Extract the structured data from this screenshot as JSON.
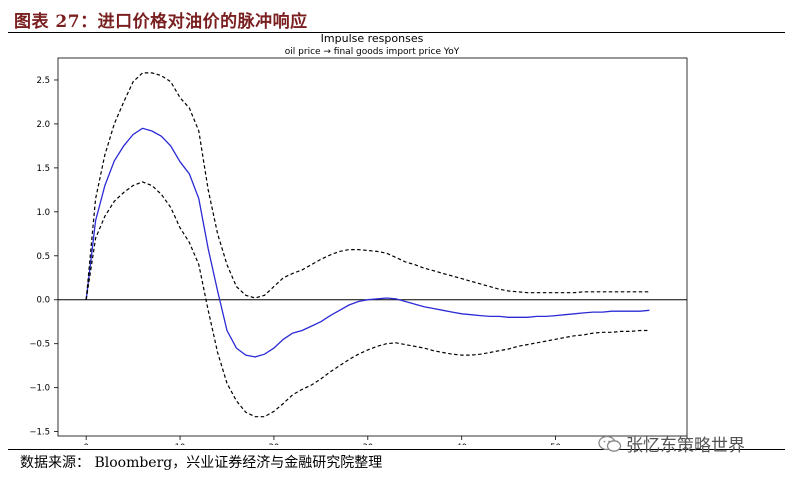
{
  "figure_title": "图表 27：进口价格对油价的脉冲响应",
  "source_note": "数据来源：  Bloomberg，兴业证券经济与金融研究院整理",
  "watermark": "张忆东策略世界",
  "chart_data": {
    "type": "line",
    "title": "Impulse responses",
    "subtitle": "oil price → final goods import price YoY",
    "xlabel": "",
    "ylabel": "",
    "xlim": [
      -3,
      64
    ],
    "ylim": [
      -1.55,
      2.75
    ],
    "x_ticks": [
      0,
      10,
      20,
      30,
      40,
      50
    ],
    "y_ticks": [
      -1.5,
      -1.0,
      -0.5,
      0.0,
      0.5,
      1.0,
      1.5,
      2.0,
      2.5
    ],
    "x_tick_labels": [
      "0",
      "10",
      "20",
      "30",
      "40",
      "50"
    ],
    "y_tick_labels": [
      "−1.5",
      "−1.0",
      "−0.5",
      "0.0",
      "0.5",
      "1.0",
      "1.5",
      "2.0",
      "2.5"
    ],
    "reference_line": 0,
    "colors": {
      "response": "#2b2bd6",
      "bands": "#000000",
      "zero": "#000000"
    },
    "series": [
      {
        "role": "response",
        "style": "solid",
        "x": [
          0,
          1,
          2,
          3,
          4,
          5,
          6,
          7,
          8,
          9,
          10,
          11,
          12,
          13,
          14,
          15,
          16,
          17,
          18,
          19,
          20,
          21,
          22,
          23,
          24,
          25,
          26,
          27,
          28,
          29,
          30,
          31,
          32,
          33,
          34,
          35,
          36,
          37,
          38,
          39,
          40,
          41,
          42,
          43,
          44,
          45,
          46,
          47,
          48,
          49,
          50,
          51,
          52,
          53,
          54,
          55,
          56,
          57,
          58,
          59,
          60
        ],
        "y": [
          0.0,
          0.9,
          1.3,
          1.58,
          1.75,
          1.88,
          1.95,
          1.92,
          1.86,
          1.75,
          1.57,
          1.43,
          1.15,
          0.58,
          0.1,
          -0.35,
          -0.55,
          -0.63,
          -0.65,
          -0.62,
          -0.55,
          -0.45,
          -0.38,
          -0.35,
          -0.3,
          -0.25,
          -0.18,
          -0.12,
          -0.06,
          -0.02,
          0.0,
          0.01,
          0.02,
          0.01,
          -0.02,
          -0.05,
          -0.08,
          -0.1,
          -0.12,
          -0.14,
          -0.16,
          -0.17,
          -0.18,
          -0.19,
          -0.19,
          -0.2,
          -0.2,
          -0.2,
          -0.19,
          -0.19,
          -0.18,
          -0.17,
          -0.16,
          -0.15,
          -0.14,
          -0.14,
          -0.13,
          -0.13,
          -0.13,
          -0.13,
          -0.12
        ]
      },
      {
        "role": "upper-band",
        "style": "dashed",
        "x": [
          0,
          1,
          2,
          3,
          4,
          5,
          6,
          7,
          8,
          9,
          10,
          11,
          12,
          13,
          14,
          15,
          16,
          17,
          18,
          19,
          20,
          21,
          22,
          23,
          24,
          25,
          26,
          27,
          28,
          29,
          30,
          31,
          32,
          33,
          34,
          35,
          36,
          37,
          38,
          39,
          40,
          41,
          42,
          43,
          44,
          45,
          46,
          47,
          48,
          49,
          50,
          51,
          52,
          53,
          54,
          55,
          56,
          57,
          58,
          59,
          60
        ],
        "y": [
          0.0,
          1.15,
          1.65,
          2.0,
          2.25,
          2.48,
          2.58,
          2.58,
          2.55,
          2.48,
          2.3,
          2.18,
          1.92,
          1.25,
          0.75,
          0.4,
          0.15,
          0.05,
          0.02,
          0.05,
          0.15,
          0.25,
          0.3,
          0.34,
          0.4,
          0.46,
          0.51,
          0.55,
          0.57,
          0.57,
          0.56,
          0.55,
          0.53,
          0.48,
          0.43,
          0.4,
          0.36,
          0.33,
          0.3,
          0.27,
          0.24,
          0.21,
          0.18,
          0.15,
          0.12,
          0.1,
          0.09,
          0.08,
          0.08,
          0.08,
          0.08,
          0.08,
          0.08,
          0.09,
          0.09,
          0.09,
          0.09,
          0.09,
          0.09,
          0.09,
          0.09
        ]
      },
      {
        "role": "lower-band",
        "style": "dashed",
        "x": [
          0,
          1,
          2,
          3,
          4,
          5,
          6,
          7,
          8,
          9,
          10,
          11,
          12,
          13,
          14,
          15,
          16,
          17,
          18,
          19,
          20,
          21,
          22,
          23,
          24,
          25,
          26,
          27,
          28,
          29,
          30,
          31,
          32,
          33,
          34,
          35,
          36,
          37,
          38,
          39,
          40,
          41,
          42,
          43,
          44,
          45,
          46,
          47,
          48,
          49,
          50,
          51,
          52,
          53,
          54,
          55,
          56,
          57,
          58,
          59,
          60
        ],
        "y": [
          0.0,
          0.7,
          0.95,
          1.12,
          1.22,
          1.3,
          1.34,
          1.3,
          1.2,
          1.05,
          0.82,
          0.65,
          0.4,
          -0.12,
          -0.6,
          -0.95,
          -1.15,
          -1.28,
          -1.33,
          -1.33,
          -1.27,
          -1.18,
          -1.08,
          -1.02,
          -0.97,
          -0.9,
          -0.82,
          -0.75,
          -0.68,
          -0.62,
          -0.57,
          -0.53,
          -0.5,
          -0.49,
          -0.51,
          -0.53,
          -0.55,
          -0.58,
          -0.6,
          -0.62,
          -0.63,
          -0.63,
          -0.62,
          -0.6,
          -0.58,
          -0.56,
          -0.53,
          -0.51,
          -0.49,
          -0.47,
          -0.45,
          -0.43,
          -0.41,
          -0.4,
          -0.38,
          -0.37,
          -0.37,
          -0.36,
          -0.36,
          -0.35,
          -0.35
        ]
      }
    ]
  }
}
